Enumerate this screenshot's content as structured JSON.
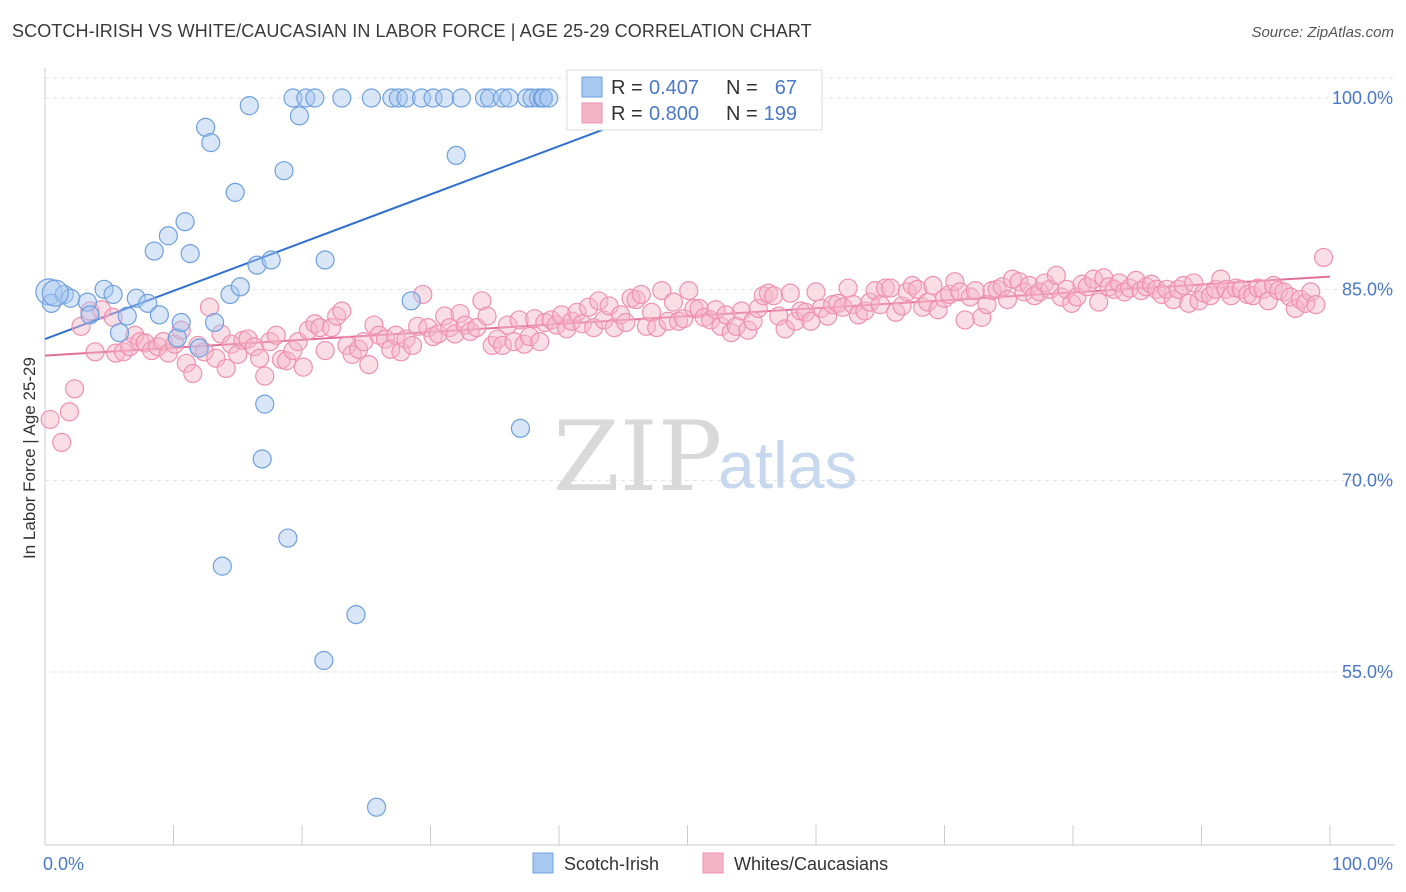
{
  "title": "SCOTCH-IRISH VS WHITE/CAUCASIAN IN LABOR FORCE | AGE 25-29 CORRELATION CHART",
  "source": "Source: ZipAtlas.com",
  "watermark": {
    "zip": "ZIP",
    "atlas": "atlas"
  },
  "legend": {
    "r_label": "R =",
    "n_label": "N =",
    "rows": [
      {
        "r": "0.407",
        "n": "67",
        "color": "#a8c8f0"
      },
      {
        "r": "0.800",
        "n": "199",
        "color": "#f5b5c8"
      }
    ]
  },
  "bottom_legend": [
    {
      "label": "Scotch-Irish",
      "color": "#a8c8f0"
    },
    {
      "label": "Whites/Caucasians",
      "color": "#f5b5c8"
    }
  ],
  "chart_data": {
    "type": "scatter",
    "title": "SCOTCH-IRISH VS WHITE/CAUCASIAN IN LABOR FORCE | AGE 25-29 CORRELATION CHART",
    "xlabel": "",
    "ylabel": "In Labor Force | Age 25-29",
    "xlim": [
      0,
      100
    ],
    "ylim": [
      42,
      102
    ],
    "x_tick_labels": [
      "0.0%",
      "100.0%"
    ],
    "y_ticks": [
      55,
      70,
      85,
      100
    ],
    "y_tick_labels": [
      "55.0%",
      "70.0%",
      "85.0%",
      "100.0%"
    ],
    "grid": true,
    "legend_position": "top-center",
    "series": [
      {
        "name": "Scotch-Irish",
        "color": "#6ea0e0",
        "trend": {
          "x": [
            0,
            50
          ],
          "y": [
            81.1,
            100.0
          ]
        },
        "points": [
          [
            0.3,
            84.8
          ],
          [
            0.5,
            83.9
          ],
          [
            1.5,
            84.6
          ],
          [
            2.0,
            84.3
          ],
          [
            3.3,
            84.0
          ],
          [
            3.5,
            83.0
          ],
          [
            4.6,
            85.0
          ],
          [
            5.3,
            84.6
          ],
          [
            5.8,
            81.6
          ],
          [
            6.4,
            82.9
          ],
          [
            7.1,
            84.3
          ],
          [
            8.0,
            83.9
          ],
          [
            8.5,
            88.0
          ],
          [
            8.9,
            83.0
          ],
          [
            9.6,
            89.2
          ],
          [
            10.3,
            81.2
          ],
          [
            10.6,
            82.4
          ],
          [
            10.9,
            90.3
          ],
          [
            11.3,
            87.8
          ],
          [
            12.0,
            80.4
          ],
          [
            12.5,
            97.7
          ],
          [
            12.9,
            96.5
          ],
          [
            13.2,
            82.4
          ],
          [
            13.8,
            63.3
          ],
          [
            14.4,
            84.6
          ],
          [
            14.8,
            92.6
          ],
          [
            15.2,
            85.2
          ],
          [
            15.9,
            99.4
          ],
          [
            16.5,
            86.9
          ],
          [
            16.9,
            71.7
          ],
          [
            17.1,
            76.0
          ],
          [
            17.6,
            87.3
          ],
          [
            18.6,
            94.3
          ],
          [
            18.9,
            65.5
          ],
          [
            19.3,
            100.0
          ],
          [
            19.8,
            98.6
          ],
          [
            20.3,
            100.0
          ],
          [
            21.0,
            100.0
          ],
          [
            21.7,
            55.9
          ],
          [
            21.8,
            87.3
          ],
          [
            23.1,
            100.0
          ],
          [
            24.2,
            59.5
          ],
          [
            25.4,
            100.0
          ],
          [
            25.8,
            44.4
          ],
          [
            27.0,
            100.0
          ],
          [
            27.5,
            100.0
          ],
          [
            28.1,
            100.0
          ],
          [
            28.5,
            84.1
          ],
          [
            29.3,
            100.0
          ],
          [
            30.2,
            100.0
          ],
          [
            31.1,
            100.0
          ],
          [
            32.0,
            95.5
          ],
          [
            32.4,
            100.0
          ],
          [
            34.2,
            100.0
          ],
          [
            34.6,
            100.0
          ],
          [
            35.6,
            100.0
          ],
          [
            36.1,
            100.0
          ],
          [
            37.0,
            74.1
          ],
          [
            37.5,
            100.0
          ],
          [
            37.9,
            100.0
          ],
          [
            38.4,
            100.0
          ],
          [
            38.7,
            100.0
          ],
          [
            38.8,
            100.0
          ],
          [
            39.2,
            100.0
          ],
          [
            46.7,
            100.0
          ],
          [
            47.2,
            100.0
          ],
          [
            0.8,
            84.7
          ]
        ]
      },
      {
        "name": "Whites/Caucasians",
        "color": "#f090b0",
        "trend": {
          "x": [
            0,
            100
          ],
          "y": [
            79.8,
            86.0
          ]
        },
        "points": [
          [
            0.4,
            74.8
          ],
          [
            1.3,
            73.0
          ],
          [
            1.9,
            75.4
          ],
          [
            2.3,
            77.2
          ],
          [
            2.8,
            82.1
          ],
          [
            3.5,
            83.3
          ],
          [
            3.9,
            80.1
          ],
          [
            4.4,
            83.4
          ],
          [
            5.3,
            82.8
          ],
          [
            5.5,
            80.0
          ],
          [
            6.1,
            80.1
          ],
          [
            6.6,
            80.5
          ],
          [
            7.0,
            81.4
          ],
          [
            7.4,
            80.9
          ],
          [
            7.8,
            80.8
          ],
          [
            8.3,
            80.2
          ],
          [
            8.8,
            80.5
          ],
          [
            9.2,
            80.9
          ],
          [
            9.6,
            80.0
          ],
          [
            10.1,
            80.7
          ],
          [
            10.6,
            81.8
          ],
          [
            11.0,
            79.2
          ],
          [
            11.5,
            78.4
          ],
          [
            11.9,
            80.6
          ],
          [
            12.4,
            80.1
          ],
          [
            12.8,
            83.6
          ],
          [
            13.3,
            79.6
          ],
          [
            13.7,
            81.5
          ],
          [
            14.1,
            78.8
          ],
          [
            14.5,
            80.7
          ],
          [
            15.0,
            79.9
          ],
          [
            15.4,
            81.0
          ],
          [
            15.8,
            81.1
          ],
          [
            16.3,
            80.5
          ],
          [
            16.7,
            79.6
          ],
          [
            17.1,
            78.2
          ],
          [
            17.5,
            80.9
          ],
          [
            18.0,
            81.4
          ],
          [
            18.4,
            79.5
          ],
          [
            18.8,
            79.4
          ],
          [
            19.3,
            80.2
          ],
          [
            19.7,
            80.9
          ],
          [
            20.1,
            78.9
          ],
          [
            20.5,
            81.8
          ],
          [
            21.0,
            82.3
          ],
          [
            21.4,
            82.0
          ],
          [
            21.8,
            80.2
          ],
          [
            22.3,
            82.0
          ],
          [
            22.7,
            82.9
          ],
          [
            23.1,
            83.3
          ],
          [
            23.5,
            80.6
          ],
          [
            23.9,
            79.9
          ],
          [
            24.4,
            80.3
          ],
          [
            24.8,
            80.9
          ],
          [
            25.2,
            79.1
          ],
          [
            25.6,
            82.2
          ],
          [
            26.0,
            81.4
          ],
          [
            26.5,
            81.1
          ],
          [
            26.9,
            80.3
          ],
          [
            27.3,
            81.4
          ],
          [
            27.7,
            80.1
          ],
          [
            28.1,
            81.1
          ],
          [
            28.6,
            80.6
          ],
          [
            29.0,
            82.1
          ],
          [
            29.4,
            84.6
          ],
          [
            29.8,
            82.0
          ],
          [
            30.2,
            81.3
          ],
          [
            30.6,
            81.5
          ],
          [
            31.1,
            82.9
          ],
          [
            31.5,
            82.0
          ],
          [
            31.9,
            81.5
          ],
          [
            32.3,
            83.1
          ],
          [
            32.7,
            82.2
          ],
          [
            33.1,
            81.7
          ],
          [
            33.6,
            82.0
          ],
          [
            34.0,
            84.1
          ],
          [
            34.4,
            82.9
          ],
          [
            34.8,
            80.6
          ],
          [
            35.2,
            81.1
          ],
          [
            35.6,
            80.6
          ],
          [
            36.0,
            82.2
          ],
          [
            36.5,
            80.9
          ],
          [
            36.9,
            82.6
          ],
          [
            37.3,
            80.7
          ],
          [
            37.7,
            81.3
          ],
          [
            38.1,
            82.7
          ],
          [
            38.5,
            80.9
          ],
          [
            38.9,
            82.4
          ],
          [
            39.4,
            82.6
          ],
          [
            39.8,
            82.2
          ],
          [
            40.2,
            83.0
          ],
          [
            40.6,
            81.9
          ],
          [
            41.0,
            82.5
          ],
          [
            41.4,
            83.2
          ],
          [
            41.8,
            82.3
          ],
          [
            42.3,
            83.6
          ],
          [
            42.7,
            82.0
          ],
          [
            43.1,
            84.1
          ],
          [
            43.5,
            82.6
          ],
          [
            43.9,
            83.7
          ],
          [
            44.3,
            82.0
          ],
          [
            44.8,
            83.0
          ],
          [
            45.2,
            82.4
          ],
          [
            45.6,
            84.3
          ],
          [
            46.0,
            84.2
          ],
          [
            46.4,
            84.6
          ],
          [
            46.8,
            82.1
          ],
          [
            47.2,
            83.2
          ],
          [
            47.6,
            82.0
          ],
          [
            48.0,
            84.9
          ],
          [
            48.5,
            82.5
          ],
          [
            48.9,
            84.0
          ],
          [
            49.3,
            82.5
          ],
          [
            49.7,
            82.7
          ],
          [
            50.1,
            84.9
          ],
          [
            50.5,
            83.5
          ],
          [
            50.9,
            83.5
          ],
          [
            51.3,
            82.8
          ],
          [
            51.8,
            82.6
          ],
          [
            52.2,
            83.4
          ],
          [
            52.6,
            82.1
          ],
          [
            53.0,
            83.0
          ],
          [
            53.4,
            81.6
          ],
          [
            53.8,
            82.1
          ],
          [
            54.2,
            83.3
          ],
          [
            54.7,
            81.8
          ],
          [
            55.1,
            82.5
          ],
          [
            55.5,
            83.5
          ],
          [
            55.9,
            84.5
          ],
          [
            56.3,
            84.7
          ],
          [
            56.7,
            84.5
          ],
          [
            57.1,
            82.9
          ],
          [
            57.6,
            81.9
          ],
          [
            58.0,
            84.7
          ],
          [
            58.4,
            82.5
          ],
          [
            58.8,
            83.3
          ],
          [
            59.2,
            83.2
          ],
          [
            59.6,
            82.5
          ],
          [
            60.0,
            84.8
          ],
          [
            60.4,
            83.5
          ],
          [
            60.9,
            82.9
          ],
          [
            61.3,
            83.8
          ],
          [
            61.7,
            83.9
          ],
          [
            62.1,
            83.6
          ],
          [
            62.5,
            85.1
          ],
          [
            62.9,
            83.8
          ],
          [
            63.3,
            83.0
          ],
          [
            63.8,
            83.3
          ],
          [
            64.2,
            84.0
          ],
          [
            64.6,
            84.9
          ],
          [
            65.0,
            83.8
          ],
          [
            65.4,
            85.1
          ],
          [
            65.8,
            85.1
          ],
          [
            66.2,
            83.2
          ],
          [
            66.7,
            83.7
          ],
          [
            67.1,
            84.8
          ],
          [
            67.5,
            85.3
          ],
          [
            67.9,
            85.0
          ],
          [
            68.3,
            83.6
          ],
          [
            68.7,
            84.0
          ],
          [
            69.1,
            85.3
          ],
          [
            69.5,
            83.4
          ],
          [
            70.0,
            84.3
          ],
          [
            70.4,
            84.6
          ],
          [
            70.8,
            85.6
          ],
          [
            71.2,
            84.8
          ],
          [
            71.6,
            82.6
          ],
          [
            72.0,
            84.4
          ],
          [
            72.4,
            84.9
          ],
          [
            72.9,
            82.8
          ],
          [
            73.3,
            83.8
          ],
          [
            73.7,
            84.9
          ],
          [
            74.1,
            85.0
          ],
          [
            74.5,
            85.2
          ],
          [
            74.9,
            84.2
          ],
          [
            75.3,
            85.8
          ],
          [
            75.8,
            85.6
          ],
          [
            76.2,
            84.8
          ],
          [
            76.6,
            85.3
          ],
          [
            77.0,
            84.5
          ],
          [
            77.4,
            84.8
          ],
          [
            77.8,
            85.5
          ],
          [
            78.2,
            85.0
          ],
          [
            78.7,
            86.1
          ],
          [
            79.1,
            84.4
          ],
          [
            79.5,
            85.0
          ],
          [
            79.9,
            83.9
          ],
          [
            80.3,
            84.4
          ],
          [
            80.7,
            85.4
          ],
          [
            81.1,
            85.2
          ],
          [
            81.6,
            85.8
          ],
          [
            82.0,
            84.0
          ],
          [
            82.4,
            85.9
          ],
          [
            82.8,
            85.2
          ],
          [
            83.2,
            85.0
          ],
          [
            83.6,
            85.5
          ],
          [
            84.0,
            84.8
          ],
          [
            84.4,
            85.1
          ],
          [
            84.9,
            85.7
          ],
          [
            85.3,
            84.9
          ],
          [
            85.7,
            85.2
          ],
          [
            86.1,
            85.4
          ],
          [
            86.5,
            85.0
          ],
          [
            86.9,
            84.6
          ],
          [
            87.3,
            85.0
          ],
          [
            87.8,
            84.2
          ],
          [
            88.2,
            85.0
          ],
          [
            88.6,
            85.3
          ],
          [
            89.0,
            83.9
          ],
          [
            89.4,
            85.5
          ],
          [
            89.8,
            84.1
          ],
          [
            90.2,
            84.7
          ],
          [
            90.7,
            84.5
          ],
          [
            91.1,
            85.0
          ],
          [
            91.5,
            85.8
          ],
          [
            91.9,
            85.0
          ],
          [
            92.3,
            84.5
          ],
          [
            92.7,
            85.1
          ],
          [
            93.1,
            85.0
          ],
          [
            93.6,
            84.6
          ],
          [
            94.0,
            84.5
          ],
          [
            94.4,
            85.1
          ],
          [
            94.8,
            85.0
          ],
          [
            95.2,
            84.1
          ],
          [
            95.6,
            85.3
          ],
          [
            96.0,
            84.9
          ],
          [
            96.4,
            84.8
          ],
          [
            96.9,
            84.4
          ],
          [
            97.3,
            83.5
          ],
          [
            97.7,
            84.2
          ],
          [
            98.1,
            83.9
          ],
          [
            98.5,
            84.8
          ],
          [
            98.9,
            83.8
          ],
          [
            99.5,
            87.5
          ]
        ]
      }
    ]
  }
}
